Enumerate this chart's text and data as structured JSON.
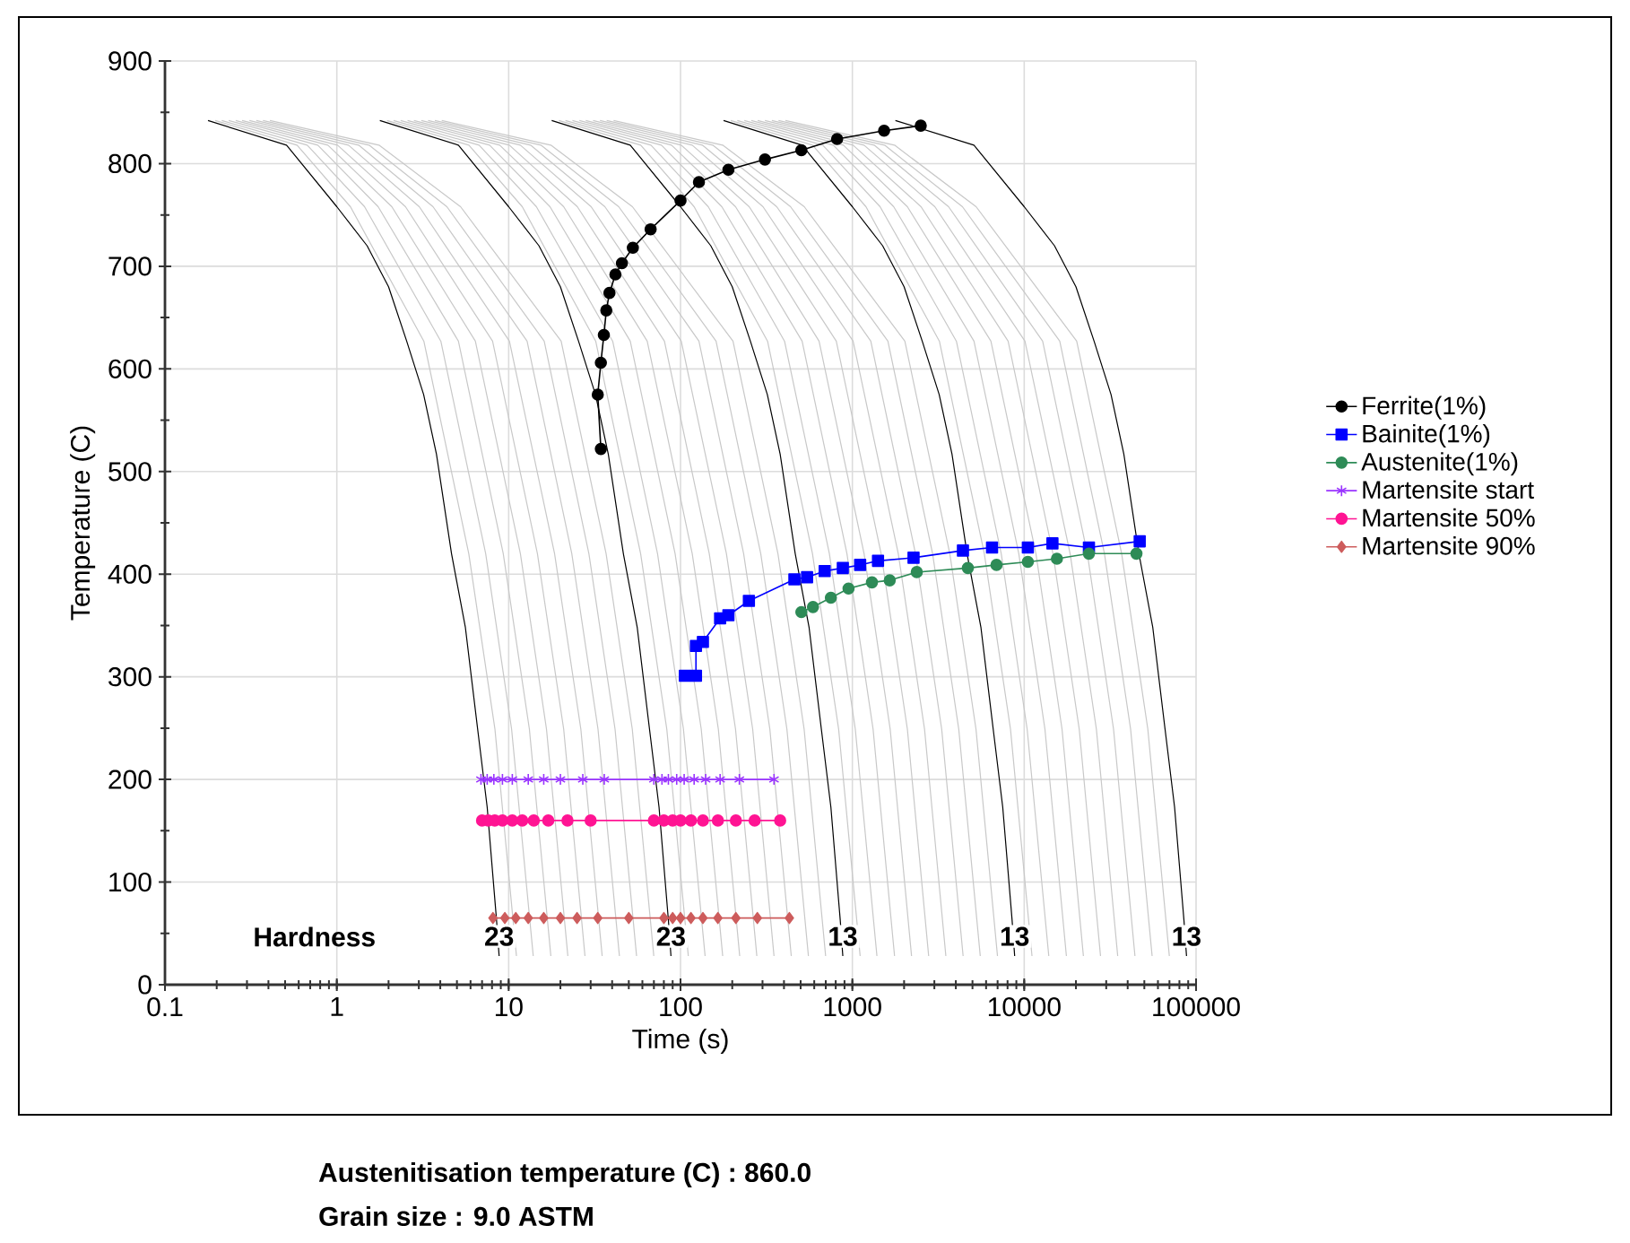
{
  "chart_data": {
    "type": "line",
    "xlabel": "Time (s)",
    "ylabel": "Temperature (C)",
    "log": "x",
    "grid": true,
    "legend": "right",
    "xlim": [
      0.1,
      100000
    ],
    "xticks": [
      0.1,
      1,
      10,
      100,
      1000,
      10000,
      100000
    ],
    "ylim": [
      0,
      900
    ],
    "yticks": [
      0,
      100,
      200,
      300,
      400,
      500,
      600,
      700,
      800,
      900
    ],
    "series": [
      {
        "color": "#c8c8c8",
        "marker": "none",
        "x": [
          0.196,
          0.587,
          1.2,
          3.21,
          5.86,
          8.32,
          11.1
        ],
        "values": [
          842,
          818,
          758,
          627,
          420,
          249,
          28
        ]
      },
      {
        "color": "#c8c8c8",
        "marker": "none",
        "x": [
          0.214,
          0.673,
          1.45,
          4.03,
          7.35,
          10.4,
          13.9
        ],
        "values": [
          842,
          818,
          758,
          627,
          420,
          249,
          28
        ]
      },
      {
        "color": "#c8c8c8",
        "marker": "none",
        "x": [
          0.235,
          0.775,
          1.74,
          5.1,
          9.3,
          13.2,
          17.6
        ],
        "values": [
          842,
          818,
          758,
          627,
          420,
          249,
          28
        ]
      },
      {
        "color": "#c8c8c8",
        "marker": "none",
        "x": [
          0.258,
          0.887,
          2.09,
          6.4,
          11.7,
          16.6,
          22.1
        ],
        "values": [
          842,
          818,
          758,
          627,
          420,
          249,
          28
        ]
      },
      {
        "color": "#c8c8c8",
        "marker": "none",
        "x": [
          0.281,
          1.01,
          2.51,
          8.06,
          14.7,
          20.9,
          27.8
        ],
        "values": [
          842,
          818,
          758,
          627,
          420,
          249,
          28
        ]
      },
      {
        "color": "#c8c8c8",
        "marker": "none",
        "x": [
          0.31,
          1.17,
          3.02,
          10.1,
          18.5,
          26.3,
          35.0
        ],
        "values": [
          842,
          818,
          758,
          627,
          420,
          249,
          28
        ]
      },
      {
        "color": "#c8c8c8",
        "marker": "none",
        "x": [
          0.34,
          1.34,
          3.63,
          12.8,
          23.3,
          33.1,
          44.1
        ],
        "values": [
          842,
          818,
          758,
          627,
          420,
          249,
          28
        ]
      },
      {
        "color": "#c8c8c8",
        "marker": "none",
        "x": [
          0.372,
          1.54,
          4.37,
          16.1,
          29.3,
          41.6,
          55.5
        ],
        "values": [
          842,
          818,
          758,
          627,
          420,
          249,
          28
        ]
      },
      {
        "color": "#c8c8c8",
        "marker": "none",
        "x": [
          0.408,
          1.76,
          5.25,
          20.2,
          36.9,
          52.4,
          69.9
        ],
        "values": [
          842,
          818,
          758,
          627,
          420,
          249,
          28
        ]
      },
      {
        "color": "#c8c8c8",
        "marker": "none",
        "x": [
          1.96,
          5.87,
          12.0,
          32.1,
          58.6,
          83.2,
          111
        ],
        "values": [
          842,
          818,
          758,
          627,
          420,
          249,
          28
        ]
      },
      {
        "color": "#c8c8c8",
        "marker": "none",
        "x": [
          2.14,
          6.73,
          14.5,
          40.3,
          73.5,
          104,
          139
        ],
        "values": [
          842,
          818,
          758,
          627,
          420,
          249,
          28
        ]
      },
      {
        "color": "#c8c8c8",
        "marker": "none",
        "x": [
          2.35,
          7.75,
          17.4,
          51.0,
          93.0,
          132,
          176
        ],
        "values": [
          842,
          818,
          758,
          627,
          420,
          249,
          28
        ]
      },
      {
        "color": "#c8c8c8",
        "marker": "none",
        "x": [
          2.58,
          8.87,
          20.9,
          64.0,
          117,
          166,
          221
        ],
        "values": [
          842,
          818,
          758,
          627,
          420,
          249,
          28
        ]
      },
      {
        "color": "#c8c8c8",
        "marker": "none",
        "x": [
          2.81,
          10.1,
          25.1,
          80.6,
          147,
          209,
          278
        ],
        "values": [
          842,
          818,
          758,
          627,
          420,
          249,
          28
        ]
      },
      {
        "color": "#c8c8c8",
        "marker": "none",
        "x": [
          3.1,
          11.7,
          30.2,
          101,
          185,
          263,
          350
        ],
        "values": [
          842,
          818,
          758,
          627,
          420,
          249,
          28
        ]
      },
      {
        "color": "#c8c8c8",
        "marker": "none",
        "x": [
          3.4,
          13.4,
          36.3,
          128,
          233,
          331,
          441
        ],
        "values": [
          842,
          818,
          758,
          627,
          420,
          249,
          28
        ]
      },
      {
        "color": "#c8c8c8",
        "marker": "none",
        "x": [
          3.72,
          15.4,
          43.7,
          161,
          293,
          416,
          555
        ],
        "values": [
          842,
          818,
          758,
          627,
          420,
          249,
          28
        ]
      },
      {
        "color": "#c8c8c8",
        "marker": "none",
        "x": [
          4.08,
          17.6,
          52.5,
          202,
          369,
          524,
          699
        ],
        "values": [
          842,
          818,
          758,
          627,
          420,
          249,
          28
        ]
      },
      {
        "color": "#c8c8c8",
        "marker": "none",
        "x": [
          19.6,
          58.7,
          120,
          321,
          586,
          832,
          1110
        ],
        "values": [
          842,
          818,
          758,
          627,
          420,
          249,
          28
        ]
      },
      {
        "color": "#c8c8c8",
        "marker": "none",
        "x": [
          21.4,
          67.3,
          145,
          403,
          735,
          1040,
          1390
        ],
        "values": [
          842,
          818,
          758,
          627,
          420,
          249,
          28
        ]
      },
      {
        "color": "#c8c8c8",
        "marker": "none",
        "x": [
          23.5,
          77.5,
          174,
          510,
          930,
          1320,
          1760
        ],
        "values": [
          842,
          818,
          758,
          627,
          420,
          249,
          28
        ]
      },
      {
        "color": "#c8c8c8",
        "marker": "none",
        "x": [
          25.8,
          88.7,
          209,
          640,
          1170,
          1660,
          2210
        ],
        "values": [
          842,
          818,
          758,
          627,
          420,
          249,
          28
        ]
      },
      {
        "color": "#c8c8c8",
        "marker": "none",
        "x": [
          28.1,
          101,
          251,
          806,
          1470,
          2090,
          2780
        ],
        "values": [
          842,
          818,
          758,
          627,
          420,
          249,
          28
        ]
      },
      {
        "color": "#c8c8c8",
        "marker": "none",
        "x": [
          31.0,
          117,
          302,
          1010,
          1850,
          2630,
          3500
        ],
        "values": [
          842,
          818,
          758,
          627,
          420,
          249,
          28
        ]
      },
      {
        "color": "#c8c8c8",
        "marker": "none",
        "x": [
          34.0,
          134,
          363,
          1280,
          2330,
          3310,
          4410
        ],
        "values": [
          842,
          818,
          758,
          627,
          420,
          249,
          28
        ]
      },
      {
        "color": "#c8c8c8",
        "marker": "none",
        "x": [
          37.2,
          154,
          437,
          1610,
          2930,
          4160,
          5550
        ],
        "values": [
          842,
          818,
          758,
          627,
          420,
          249,
          28
        ]
      },
      {
        "color": "#c8c8c8",
        "marker": "none",
        "x": [
          40.8,
          176,
          525,
          2020,
          3690,
          5240,
          6990
        ],
        "values": [
          842,
          818,
          758,
          627,
          420,
          249,
          28
        ]
      },
      {
        "color": "#c8c8c8",
        "marker": "none",
        "x": [
          196,
          587,
          1200,
          3210,
          5860,
          8320,
          11100
        ],
        "values": [
          842,
          818,
          758,
          627,
          420,
          249,
          28
        ]
      },
      {
        "color": "#c8c8c8",
        "marker": "none",
        "x": [
          214,
          673,
          1450,
          4030,
          7350,
          10400,
          13900
        ],
        "values": [
          842,
          818,
          758,
          627,
          420,
          249,
          28
        ]
      },
      {
        "color": "#c8c8c8",
        "marker": "none",
        "x": [
          235,
          775,
          1740,
          5100,
          9300,
          13200,
          17600
        ],
        "values": [
          842,
          818,
          758,
          627,
          420,
          249,
          28
        ]
      },
      {
        "color": "#c8c8c8",
        "marker": "none",
        "x": [
          258,
          887,
          2090,
          6400,
          11700,
          16600,
          22100
        ],
        "values": [
          842,
          818,
          758,
          627,
          420,
          249,
          28
        ]
      },
      {
        "color": "#c8c8c8",
        "marker": "none",
        "x": [
          281,
          1010,
          2510,
          8060,
          14700,
          20900,
          27800
        ],
        "values": [
          842,
          818,
          758,
          627,
          420,
          249,
          28
        ]
      },
      {
        "color": "#c8c8c8",
        "marker": "none",
        "x": [
          310,
          1170,
          3020,
          10100,
          18500,
          26300,
          35000
        ],
        "values": [
          842,
          818,
          758,
          627,
          420,
          249,
          28
        ]
      },
      {
        "color": "#c8c8c8",
        "marker": "none",
        "x": [
          340,
          1340,
          3630,
          12800,
          23300,
          33100,
          44100
        ],
        "values": [
          842,
          818,
          758,
          627,
          420,
          249,
          28
        ]
      },
      {
        "color": "#c8c8c8",
        "marker": "none",
        "x": [
          372,
          1540,
          4370,
          16100,
          29300,
          41600,
          55500
        ],
        "values": [
          842,
          818,
          758,
          627,
          420,
          249,
          28
        ]
      },
      {
        "color": "#c8c8c8",
        "marker": "none",
        "x": [
          408,
          1760,
          5250,
          20200,
          36900,
          52400,
          69900
        ],
        "values": [
          842,
          818,
          758,
          627,
          420,
          249,
          28
        ]
      },
      {
        "color": "#000000",
        "marker": "none",
        "x": [
          0.178,
          0.51,
          1.0,
          1.5,
          2.0,
          2.55,
          3.2,
          3.8,
          4.65,
          5.6,
          6.6,
          7.5,
          8.5,
          8.8
        ],
        "values": [
          842,
          818,
          758,
          720,
          680,
          627,
          575,
          517,
          420,
          348,
          249,
          173,
          63,
          28
        ]
      },
      {
        "color": "#000000",
        "marker": "none",
        "x": [
          1.78,
          5.1,
          10,
          15,
          20,
          25.5,
          32,
          38,
          46.5,
          56,
          66,
          75,
          85,
          88
        ],
        "values": [
          842,
          818,
          758,
          720,
          680,
          627,
          575,
          517,
          420,
          348,
          249,
          173,
          63,
          28
        ]
      },
      {
        "color": "#000000",
        "marker": "none",
        "x": [
          17.8,
          51,
          100,
          150,
          200,
          255,
          320,
          380,
          465,
          560,
          660,
          750,
          850,
          880
        ],
        "values": [
          842,
          818,
          758,
          720,
          680,
          627,
          575,
          517,
          420,
          348,
          249,
          173,
          63,
          28
        ]
      },
      {
        "color": "#000000",
        "marker": "none",
        "x": [
          178,
          510,
          1000,
          1500,
          2000,
          2550,
          3200,
          3800,
          4650,
          5600,
          6600,
          7500,
          8500,
          8800
        ],
        "values": [
          842,
          818,
          758,
          720,
          680,
          627,
          575,
          517,
          420,
          348,
          249,
          173,
          63,
          28
        ]
      },
      {
        "color": "#000000",
        "marker": "none",
        "x": [
          1780,
          5100,
          10000,
          15000,
          20000,
          25500,
          32000,
          38000,
          46500,
          56000,
          66000,
          75000,
          85000,
          88000
        ],
        "values": [
          842,
          818,
          758,
          720,
          680,
          627,
          575,
          517,
          420,
          348,
          249,
          173,
          63,
          28
        ]
      },
      {
        "name": "Ferrite(1%)",
        "color": "#000000",
        "marker": "circle",
        "x": [
          34.4,
          33,
          34.4,
          35.8,
          37,
          38.6,
          41.8,
          45.6,
          52.8,
          67,
          100,
          128,
          190,
          310,
          505,
          815,
          1530,
          2500
        ],
        "values": [
          522,
          575,
          606,
          633,
          657,
          674,
          692,
          703,
          718,
          736,
          764,
          782,
          794,
          804,
          813,
          824,
          832,
          837
        ]
      },
      {
        "name": "Bainite(1%)",
        "color": "#0000ff",
        "marker": "square",
        "x": [
          106,
          123,
          123,
          135,
          170,
          190,
          250,
          460,
          545,
          690,
          880,
          1110,
          1410,
          2270,
          4400,
          6500,
          10500,
          14600,
          23800,
          47000
        ],
        "values": [
          301,
          301,
          330,
          334,
          357,
          360,
          374,
          395,
          397,
          403,
          406,
          409,
          413,
          416,
          423,
          426,
          426,
          430,
          426,
          432
        ]
      },
      {
        "name": "Austenite(1%)",
        "color": "#2e8b57",
        "marker": "circle",
        "x": [
          505,
          590,
          750,
          950,
          1300,
          1650,
          2370,
          4700,
          6900,
          10500,
          15500,
          23800,
          45000
        ],
        "values": [
          363,
          368,
          377,
          386,
          392,
          394,
          402,
          406,
          409,
          412,
          415,
          420,
          420
        ]
      },
      {
        "name": "Martensite start",
        "color": "#9933ff",
        "marker": "cross",
        "x": [
          6.9,
          7.5,
          8.2,
          9.2,
          10.5,
          13,
          16,
          20,
          27,
          36,
          70,
          78,
          85,
          95,
          105,
          120,
          140,
          170,
          220,
          350
        ],
        "values": [
          200,
          200,
          200,
          200,
          200,
          200,
          200,
          200,
          200,
          200,
          200,
          200,
          200,
          200,
          200,
          200,
          200,
          200,
          200,
          200
        ]
      },
      {
        "name": "Martensite 50%",
        "color": "#ff1493",
        "marker": "circle",
        "x": [
          7.0,
          7.6,
          8.3,
          9.2,
          10.5,
          12,
          14,
          17,
          22,
          30,
          70,
          80,
          90,
          100,
          115,
          135,
          165,
          210,
          270,
          380
        ],
        "values": [
          160,
          160,
          160,
          160,
          160,
          160,
          160,
          160,
          160,
          160,
          160,
          160,
          160,
          160,
          160,
          160,
          160,
          160,
          160,
          160
        ]
      },
      {
        "name": "Martensite 90%",
        "color": "#cd5c5c",
        "marker": "diamond",
        "x": [
          8.1,
          9.5,
          11,
          13,
          16,
          20,
          25,
          33,
          50,
          80,
          90,
          100,
          115,
          135,
          165,
          210,
          280,
          430
        ],
        "values": [
          65,
          65,
          65,
          65,
          65,
          65,
          65,
          65,
          65,
          65,
          65,
          65,
          65,
          65,
          65,
          65,
          65,
          65
        ]
      }
    ],
    "annotations": [
      "Hardness",
      {
        "text": "23",
        "x": 8.8,
        "y": 47
      },
      {
        "text": "23",
        "x": 88,
        "y": 47
      },
      {
        "text": "13",
        "x": 880,
        "y": 47
      },
      {
        "text": "13",
        "x": 8800,
        "y": 47
      },
      {
        "text": "13",
        "x": 88000,
        "y": 47
      },
      "Austenitisation temperature (C) : 860.0",
      "Grain size : 9.0 ASTM"
    ]
  }
}
